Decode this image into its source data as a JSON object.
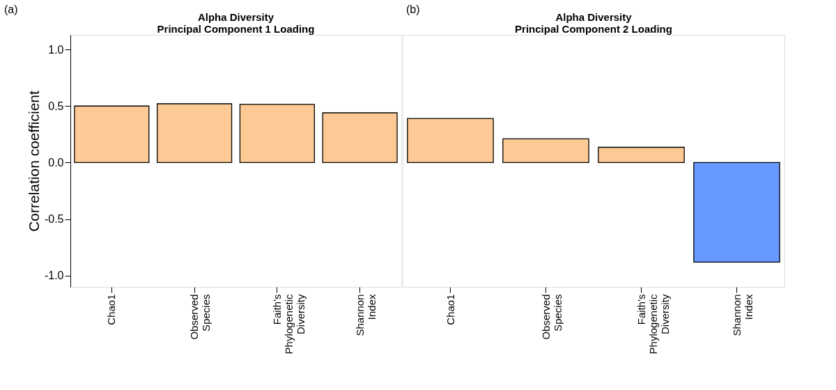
{
  "chart_data": [
    {
      "type": "bar",
      "title": "Alpha Diversity\nPrincipal Component 1 Loading",
      "ylabel": "Correlation coefficient",
      "annotations": [
        "(a)"
      ],
      "categories": [
        "Chao1",
        "Observed\nSpecies",
        "Faith's\nPhylogenetic\nDiversity",
        "Shannon\nIndex"
      ],
      "values": [
        0.5,
        0.52,
        0.515,
        0.44
      ],
      "colors": [
        "#fdca96",
        "#fdca96",
        "#fdca96",
        "#fdca96"
      ],
      "ylim": [
        -1.1,
        1.13
      ],
      "yticks": [
        {
          "value": -1,
          "label": "-1.0"
        },
        -0.5,
        {
          "value": 0,
          "label": "0.0"
        },
        0.5,
        {
          "value": 1,
          "label": "1.0"
        }
      ]
    },
    {
      "type": "bar",
      "title": "Alpha Diversity\nPrincipal Component 2 Loading",
      "annotations": [
        "(b)"
      ],
      "categories": [
        "Chao1",
        "Observed\nSpecies",
        "Faith's\nPhylogenetic\nDiversity",
        "Shannon\nIndex"
      ],
      "values": [
        0.39,
        0.21,
        0.135,
        -0.88
      ],
      "colors": [
        "#fdca96",
        "#fdca96",
        "#fdca96",
        "#6699ff"
      ],
      "ylim": [
        -1.1,
        1.13
      ],
      "tick_labels": "x"
    }
  ]
}
